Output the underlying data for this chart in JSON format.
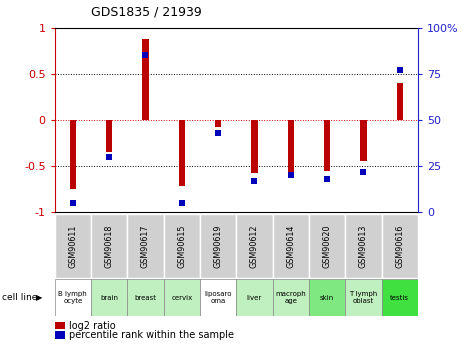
{
  "title": "GDS1835 / 21939",
  "samples": [
    "GSM90611",
    "GSM90618",
    "GSM90617",
    "GSM90615",
    "GSM90619",
    "GSM90612",
    "GSM90614",
    "GSM90620",
    "GSM90613",
    "GSM90616"
  ],
  "cell_lines": [
    "B lymph\nocyte",
    "brain",
    "breast",
    "cervix",
    "liposaro\noma",
    "liver",
    "macroph\nage",
    "skin",
    "T lymph\noblast",
    "testis"
  ],
  "cell_line_colors": [
    "#ffffff",
    "#c0f0c0",
    "#c0f0c0",
    "#c0f0c0",
    "#ffffff",
    "#c0f0c0",
    "#c0f0c0",
    "#80e880",
    "#c0f0c0",
    "#40e040"
  ],
  "log2_ratio": [
    -0.75,
    -0.35,
    0.88,
    -0.72,
    -0.08,
    -0.58,
    -0.62,
    -0.55,
    -0.45,
    0.4
  ],
  "percentile_rank": [
    5,
    30,
    85,
    5,
    43,
    17,
    20,
    18,
    22,
    77
  ],
  "ylim_left": [
    -1,
    1
  ],
  "ylim_right": [
    0,
    100
  ],
  "bar_color": "#bb0000",
  "dot_color": "#0000bb",
  "zero_line_color": "#cc0000",
  "left_axis_color": "#cc0000",
  "right_axis_color": "#2222cc",
  "legend_red_label": "log2 ratio",
  "legend_blue_label": "percentile rank within the sample",
  "cell_line_label": "cell line",
  "gsm_bg_color": "#d0d0d0",
  "bar_width": 0.18
}
